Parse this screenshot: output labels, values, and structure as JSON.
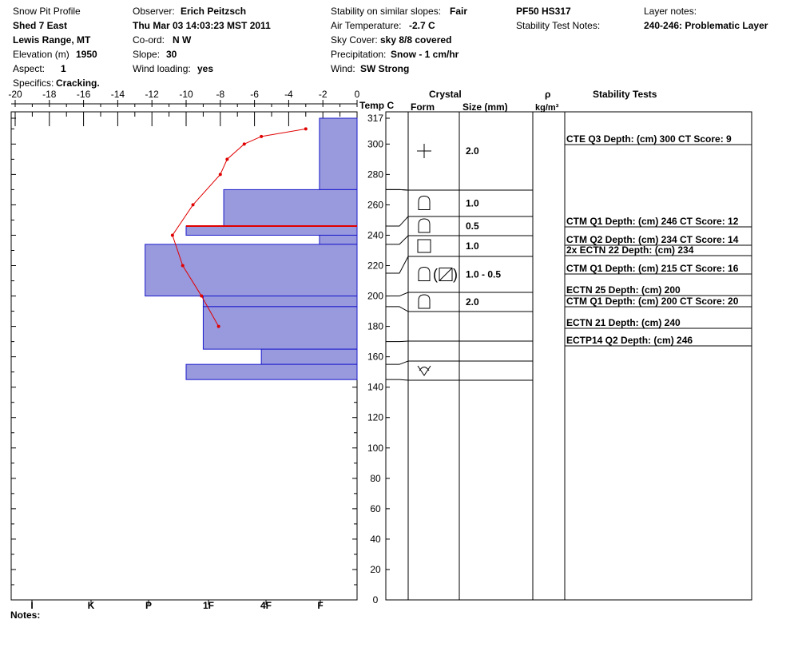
{
  "header": {
    "title": "Snow Pit Profile",
    "location": "Shed 7 East",
    "range": "Lewis Range, MT",
    "elevation_label": "Elevation (m)",
    "elevation_value": "1950",
    "aspect_label": "Aspect:",
    "aspect_value": "1",
    "specifics_label": "Specifics:",
    "specifics_value": "Cracking.",
    "observer_label": "Observer:",
    "observer_value": "Erich Peitzsch",
    "datetime": "Thu Mar 03 14:03:23 MST 2011",
    "coord_label": "Co-ord:",
    "coord_value": "N  W",
    "slope_label": "Slope:",
    "slope_value": "30",
    "wind_loading_label": "Wind loading:",
    "wind_loading_value": "yes",
    "stability_label": "Stability on similar slopes:",
    "stability_value": "Fair",
    "air_temp_label": "Air Temperature:",
    "air_temp_value": "-2.7 C",
    "sky_label": "Sky Cover:",
    "sky_value": "sky 8/8 covered",
    "precip_label": "Precipitation:",
    "precip_value": "Snow - 1 cm/hr",
    "wind_label": "Wind:",
    "wind_value": "SW Strong",
    "pf_hs": "PF50 HS317",
    "stability_notes_label": "Stability Test Notes:",
    "layer_notes_label": "Layer notes:",
    "layer_notes_value": "240-246: Problematic Layer"
  },
  "columns": {
    "temp": "Temp C",
    "crystal": "Crystal",
    "form": "Form",
    "size": "Size (mm)",
    "rho": "ρ",
    "rho_unit": "kg/m³",
    "stability": "Stability Tests"
  },
  "notes_label": "Notes:",
  "chart_data": {
    "type": "snow-pit-profile",
    "temp_axis": {
      "range": [
        -20,
        0
      ],
      "ticks": [
        "-20",
        "-18",
        "-16",
        "-14",
        "-12",
        "-10",
        "-8",
        "-6",
        "-4",
        "-2",
        "0"
      ]
    },
    "height_axis": {
      "range": [
        0,
        317
      ],
      "ticks": [
        "0",
        "20",
        "40",
        "60",
        "80",
        "100",
        "120",
        "140",
        "160",
        "180",
        "200",
        "220",
        "240",
        "260",
        "280",
        "300",
        "317"
      ]
    },
    "hardness_axis": {
      "ticks": [
        "I",
        "K",
        "P",
        "1F",
        "4F",
        "F"
      ]
    },
    "temperature_profile": [
      {
        "h": 310,
        "t": -3.0
      },
      {
        "h": 305,
        "t": -5.6
      },
      {
        "h": 300,
        "t": -6.6
      },
      {
        "h": 290,
        "t": -7.6
      },
      {
        "h": 280,
        "t": -8.0
      },
      {
        "h": 260,
        "t": -9.6
      },
      {
        "h": 240,
        "t": -10.8
      },
      {
        "h": 220,
        "t": -10.2
      },
      {
        "h": 200,
        "t": -9.1
      },
      {
        "h": 180,
        "t": -8.1
      }
    ],
    "hardness_layers": [
      {
        "top": 317,
        "bottom": 270,
        "t": -2.2
      },
      {
        "top": 270,
        "bottom": 246,
        "t": -7.8
      },
      {
        "top": 246,
        "bottom": 240,
        "t": -10.0
      },
      {
        "top": 240,
        "bottom": 234,
        "t": -2.2
      },
      {
        "top": 234,
        "bottom": 200,
        "t": -12.4
      },
      {
        "top": 200,
        "bottom": 193,
        "t": -9.0
      },
      {
        "top": 193,
        "bottom": 165,
        "t": -9.0
      },
      {
        "top": 165,
        "bottom": 155,
        "t": -5.6
      },
      {
        "top": 155,
        "bottom": 145,
        "t": -10.0
      }
    ],
    "problematic_layer_height": 246,
    "stratigraphy_boundaries": [
      317,
      270,
      246,
      234,
      215,
      200,
      193,
      170,
      155,
      145
    ],
    "layer_rows": [
      {
        "top": 317,
        "bottom": 270,
        "form": "precip-particles-icon",
        "size": "2.0"
      },
      {
        "top": 270,
        "bottom": 246,
        "form": "depth-hoar-icon",
        "size": "1.0"
      },
      {
        "top": 246,
        "bottom": 234,
        "form": "depth-hoar-icon",
        "size": "0.5"
      },
      {
        "top": 234,
        "bottom": 215,
        "form": "faceted-crystal-icon",
        "size": "1.0"
      },
      {
        "top": 215,
        "bottom": 200,
        "form": "depth-hoar-mixed-icon",
        "size": "1.0 - 0.5"
      },
      {
        "top": 200,
        "bottom": 193,
        "form": "depth-hoar-icon",
        "size": "2.0"
      },
      {
        "top": 193,
        "bottom": 170,
        "form": "",
        "size": ""
      },
      {
        "top": 170,
        "bottom": 155,
        "form": "",
        "size": ""
      },
      {
        "top": 155,
        "bottom": 145,
        "form": "surface-hoar-icon",
        "size": ""
      }
    ],
    "stability_tests": [
      "CTE Q3 Depth: (cm) 300 CT Score: 9",
      "CTM Q1 Depth: (cm) 246 CT Score: 12",
      "CTM Q2 Depth: (cm) 234 CT Score: 14",
      "2x ECTN 22  Depth: (cm) 234",
      "CTM Q1 Depth: (cm) 215 CT Score: 16",
      "ECTN 25  Depth: (cm) 200",
      "CTM Q1 Depth: (cm) 200 CT Score: 20",
      "ECTN 21  Depth: (cm) 240",
      "ECTP14 Q2 Depth: (cm) 246"
    ]
  }
}
